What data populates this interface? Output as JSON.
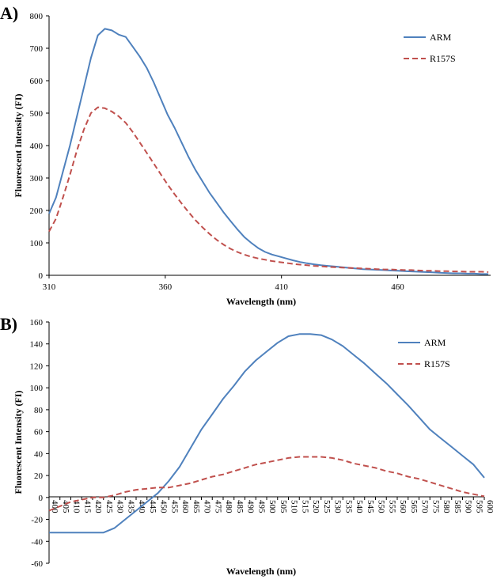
{
  "chart_data": [
    {
      "panel": "A)",
      "type": "line",
      "xlabel": "Wavelength (nm)",
      "ylabel": "Fluorescent Intensity (FI)",
      "xlim": [
        310,
        500
      ],
      "ylim": [
        0,
        800
      ],
      "xticks": [
        310,
        360,
        410,
        460
      ],
      "yticks": [
        0,
        100,
        200,
        300,
        400,
        500,
        600,
        700,
        800
      ],
      "grid": false,
      "legend": "top-right",
      "series": [
        {
          "name": "ARM",
          "color": "#4f81bd",
          "dash": "solid",
          "x": [
            310,
            313,
            316,
            319,
            322,
            325,
            328,
            331,
            334,
            337,
            340,
            343,
            346,
            349,
            352,
            355,
            358,
            361,
            364,
            367,
            370,
            373,
            376,
            379,
            382,
            385,
            388,
            391,
            394,
            397,
            400,
            403,
            406,
            409,
            412,
            415,
            418,
            421,
            424,
            427,
            430,
            433,
            436,
            439,
            442,
            445,
            448,
            451,
            454,
            457,
            460,
            463,
            466,
            469,
            472,
            475,
            478,
            481,
            484,
            487,
            490,
            493,
            496,
            499
          ],
          "y": [
            190,
            240,
            320,
            400,
            490,
            580,
            670,
            740,
            760,
            755,
            742,
            735,
            705,
            675,
            640,
            595,
            545,
            495,
            455,
            410,
            365,
            325,
            290,
            255,
            225,
            195,
            168,
            142,
            118,
            100,
            84,
            72,
            64,
            58,
            52,
            46,
            41,
            37,
            34,
            31,
            29,
            27,
            25,
            23,
            21,
            19,
            18,
            17,
            16,
            15,
            14,
            13,
            12,
            11,
            10,
            9,
            8,
            7,
            6,
            6,
            5,
            5,
            4,
            4
          ]
        },
        {
          "name": "R157S",
          "color": "#c0504d",
          "dash": "dashed",
          "x": [
            310,
            313,
            316,
            319,
            322,
            325,
            328,
            331,
            334,
            337,
            340,
            343,
            346,
            349,
            352,
            355,
            358,
            361,
            364,
            367,
            370,
            373,
            376,
            379,
            382,
            385,
            388,
            391,
            394,
            397,
            400,
            403,
            406,
            409,
            412,
            415,
            418,
            421,
            424,
            427,
            430,
            433,
            436,
            439,
            442,
            445,
            448,
            451,
            454,
            457,
            460,
            463,
            466,
            469,
            472,
            475,
            478,
            481,
            484,
            487,
            490,
            493,
            496,
            499
          ],
          "y": [
            135,
            175,
            240,
            310,
            385,
            450,
            500,
            518,
            515,
            505,
            490,
            470,
            442,
            410,
            378,
            345,
            312,
            280,
            250,
            222,
            195,
            170,
            148,
            128,
            110,
            95,
            82,
            72,
            64,
            57,
            52,
            48,
            44,
            41,
            38,
            35,
            33,
            31,
            29,
            28,
            26,
            25,
            24,
            23,
            22,
            21,
            20,
            19,
            18,
            18,
            17,
            16,
            16,
            15,
            14,
            14,
            13,
            13,
            12,
            12,
            11,
            11,
            11,
            10
          ]
        }
      ]
    },
    {
      "panel": "B)",
      "type": "line",
      "xlabel": "Wavelength (nm)",
      "ylabel": "Fluorescent Intensity (FI)",
      "xlim": [
        400,
        600
      ],
      "ylim": [
        -60,
        160
      ],
      "xticks": [
        400,
        405,
        410,
        415,
        420,
        425,
        430,
        435,
        440,
        445,
        450,
        455,
        460,
        465,
        470,
        475,
        480,
        485,
        490,
        495,
        500,
        505,
        510,
        515,
        520,
        525,
        530,
        535,
        540,
        545,
        550,
        555,
        560,
        565,
        570,
        575,
        580,
        585,
        590,
        595,
        600
      ],
      "yticks": [
        -60,
        -40,
        -20,
        0,
        20,
        40,
        60,
        80,
        100,
        120,
        140,
        160
      ],
      "grid": false,
      "legend": "top-right",
      "series": [
        {
          "name": "ARM",
          "color": "#4f81bd",
          "dash": "solid",
          "x": [
            400,
            405,
            410,
            415,
            420,
            425,
            430,
            435,
            440,
            445,
            450,
            455,
            460,
            465,
            470,
            475,
            480,
            485,
            490,
            495,
            500,
            505,
            510,
            515,
            520,
            525,
            530,
            535,
            540,
            545,
            550,
            555,
            560,
            565,
            570,
            575,
            580,
            585,
            590,
            595,
            600
          ],
          "y": [
            -32,
            -32,
            -32,
            -32,
            -32,
            -32,
            -28,
            -20,
            -12,
            -4,
            4,
            15,
            28,
            45,
            62,
            76,
            90,
            102,
            115,
            125,
            133,
            141,
            147,
            149,
            149,
            148,
            144,
            138,
            130,
            122,
            113,
            104,
            94,
            84,
            73,
            62,
            54,
            46,
            38,
            30,
            18
          ]
        },
        {
          "name": "R157S",
          "color": "#c0504d",
          "dash": "dashed",
          "x": [
            400,
            405,
            410,
            415,
            420,
            425,
            430,
            435,
            440,
            445,
            450,
            455,
            460,
            465,
            470,
            475,
            480,
            485,
            490,
            495,
            500,
            505,
            510,
            515,
            520,
            525,
            530,
            535,
            540,
            545,
            550,
            555,
            560,
            565,
            570,
            575,
            580,
            585,
            590,
            595,
            600
          ],
          "y": [
            -12,
            -8,
            -4,
            -2,
            0,
            0,
            2,
            5,
            7,
            8,
            9,
            9,
            11,
            13,
            16,
            19,
            21,
            24,
            27,
            30,
            32,
            34,
            36,
            37,
            37,
            37,
            36,
            34,
            31,
            29,
            27,
            24,
            22,
            19,
            17,
            14,
            11,
            8,
            5,
            3,
            1
          ]
        }
      ]
    }
  ]
}
